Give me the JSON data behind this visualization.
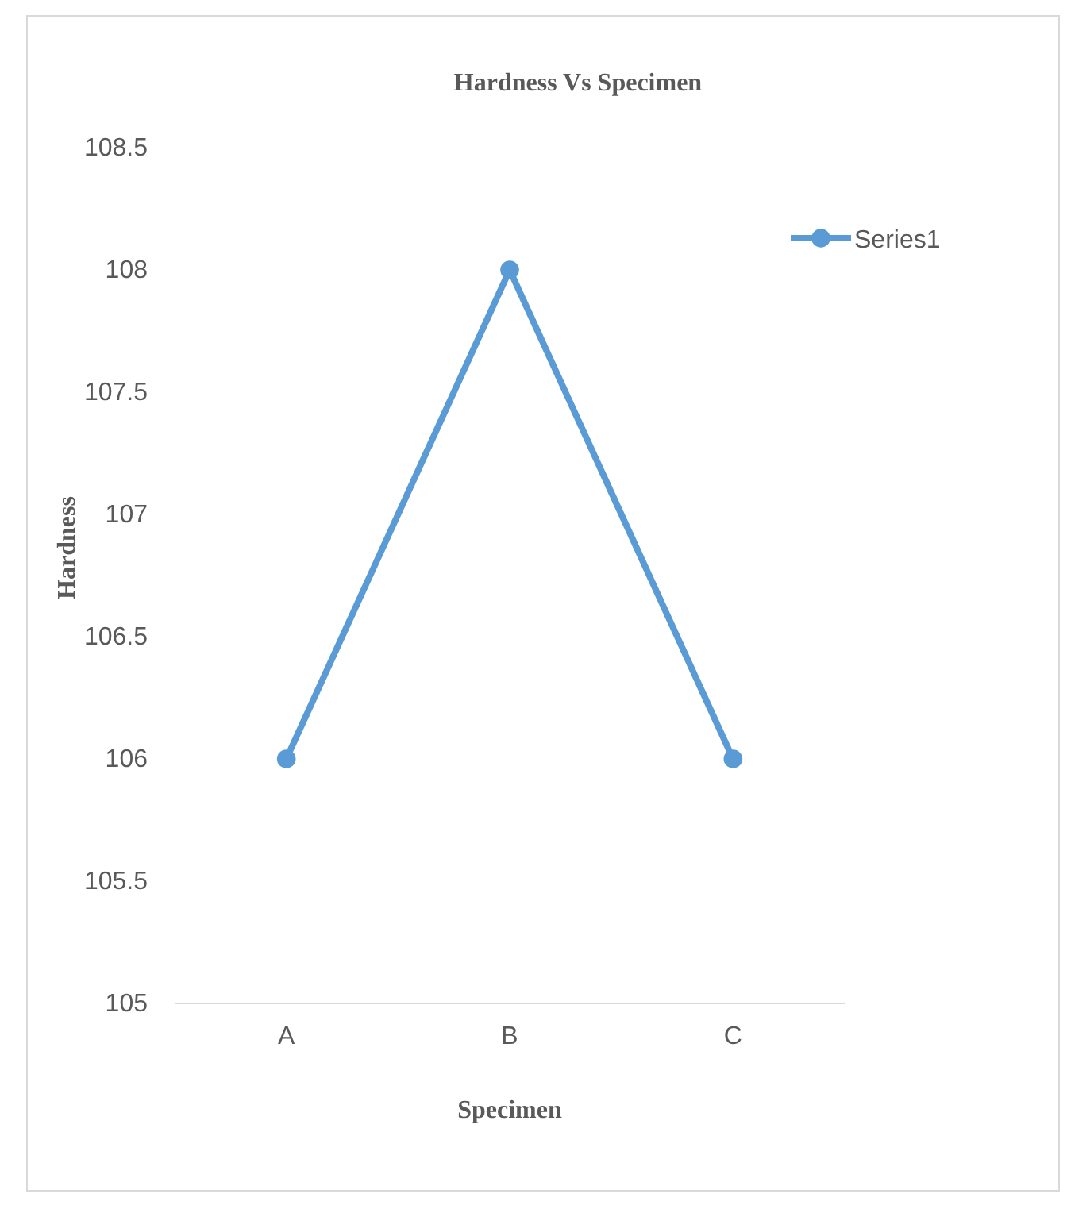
{
  "chart_data": {
    "type": "line",
    "title": "Hardness Vs Specimen",
    "xlabel": "Specimen",
    "ylabel": "Hardness",
    "categories": [
      "A",
      "B",
      "C"
    ],
    "series": [
      {
        "name": "Series1",
        "color": "#5b9bd5",
        "values": [
          106,
          108,
          106
        ]
      }
    ],
    "ylim": [
      105,
      108.5
    ],
    "yticks": [
      105,
      105.5,
      106,
      106.5,
      107,
      107.5,
      108,
      108.5
    ],
    "grid": false,
    "legend": "top right",
    "marker": "circle",
    "line_style": "solid"
  }
}
